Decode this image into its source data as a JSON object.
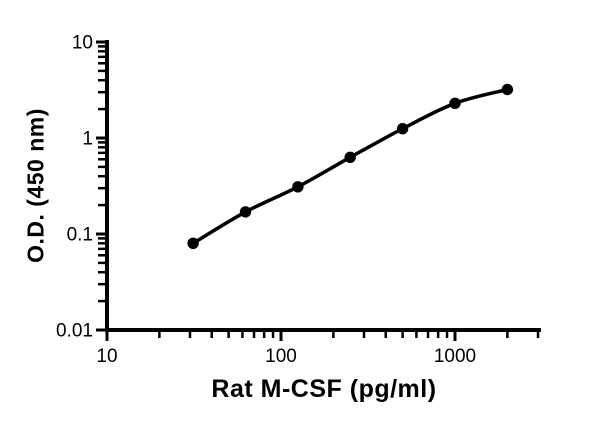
{
  "page": {
    "background": "#ffffff"
  },
  "colors": {
    "axis": "#000000",
    "curve": "#000000",
    "marker": "#000000",
    "background": "#ffffff"
  },
  "chart_data": {
    "type": "line",
    "title": "",
    "xlabel": "Rat M-CSF (pg/ml)",
    "ylabel": "O.D. (450 nm)",
    "x_scale": "log",
    "y_scale": "log",
    "xlim": [
      10,
      3000
    ],
    "ylim": [
      0.01,
      10
    ],
    "x_ticks": [
      10,
      100,
      1000
    ],
    "x_tick_labels": [
      "10",
      "100",
      "1000"
    ],
    "y_ticks": [
      10,
      1,
      0.1,
      0.01
    ],
    "y_tick_labels": [
      "10",
      "1",
      "0.1",
      "0.01"
    ],
    "grid": false,
    "legend": "none",
    "series": [
      {
        "name": "standard-curve",
        "marker": "filled-circle",
        "color": "#000000",
        "points": [
          {
            "x": 31.25,
            "y": 0.08
          },
          {
            "x": 62.5,
            "y": 0.17
          },
          {
            "x": 125,
            "y": 0.31
          },
          {
            "x": 250,
            "y": 0.63
          },
          {
            "x": 500,
            "y": 1.25
          },
          {
            "x": 1000,
            "y": 2.3
          },
          {
            "x": 2000,
            "y": 3.2
          }
        ]
      }
    ]
  }
}
